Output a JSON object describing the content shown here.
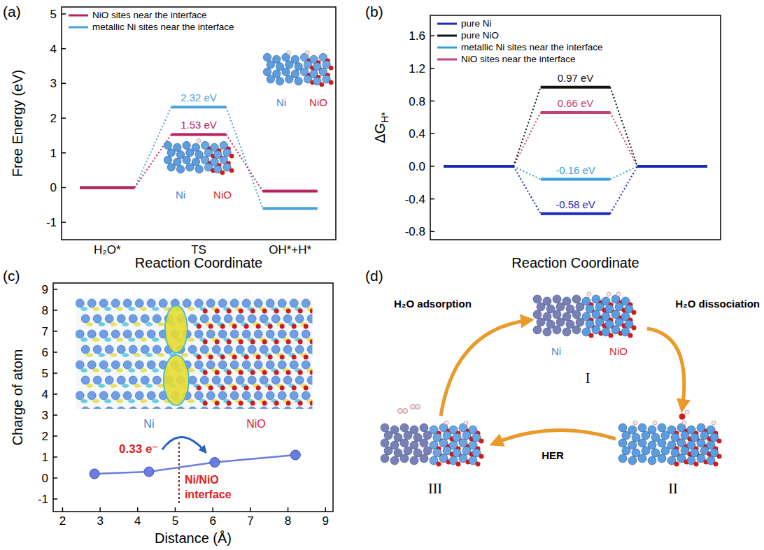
{
  "panels": [
    "(a)",
    "(b)",
    "(c)",
    "(d)"
  ],
  "chart_data": [
    {
      "type": "level",
      "xlabel": "Reaction Coordinate",
      "ylabel": "Free Energy (eV)",
      "categories": [
        "H₂O*",
        "TS",
        "OH*+H*"
      ],
      "ylim": [
        -1.5,
        5.2
      ],
      "yticks": [
        -1,
        0,
        1,
        2,
        3,
        4,
        5
      ],
      "legend": "upper-left",
      "series": [
        {
          "name": "NiO sites near the interface",
          "color": "#b8235f",
          "values": [
            0,
            1.53,
            -0.1
          ],
          "value_labels": [
            null,
            "1.53 eV",
            null
          ]
        },
        {
          "name": "metallic Ni sites near the interface",
          "color": "#4aa2dc",
          "values": [
            0,
            2.32,
            -0.6
          ],
          "value_labels": [
            null,
            "2.32 eV",
            null
          ]
        }
      ],
      "annotations": [
        {
          "text": "Ni",
          "color": "#3f86d6"
        },
        {
          "text": "NiO",
          "color": "#d81e1e"
        },
        {
          "text": "Ni",
          "color": "#3f86d6"
        },
        {
          "text": "NiO",
          "color": "#d81e1e"
        }
      ]
    },
    {
      "type": "level",
      "xlabel": "Reaction Coordinate",
      "ylabel": "ΔG",
      "ylabel_subscript": "H*",
      "categories": [
        null,
        null,
        null
      ],
      "tick_labels": "y",
      "ylim": [
        -0.9,
        1.85
      ],
      "yticks": [
        -0.8,
        -0.4,
        {
          "value": 0,
          "label": "0.0"
        },
        0.4,
        0.8,
        1.2,
        1.6
      ],
      "legend": "upper-left",
      "series": [
        {
          "name": "pure Ni",
          "color": "#1c2bb8",
          "values": [
            0,
            -0.58,
            0
          ],
          "value_labels": [
            null,
            "-0.58 eV",
            null
          ]
        },
        {
          "name": "pure NiO",
          "color": "#111111",
          "values": [
            0,
            0.97,
            0
          ],
          "value_labels": [
            null,
            "0.97 eV",
            null
          ]
        },
        {
          "name": "metallic Ni sites near the interface",
          "color": "#3a9fd8",
          "values": [
            0,
            -0.16,
            0
          ],
          "value_labels": [
            null,
            "-0.16 eV",
            null
          ]
        },
        {
          "name": "NiO sites near the interface",
          "color": "#c2407c",
          "values": [
            0,
            0.66,
            0
          ],
          "value_labels": [
            null,
            "0.66 eV",
            null
          ]
        }
      ]
    },
    {
      "type": "line",
      "marker": "circle",
      "xlabel": "Distance (Å)",
      "ylabel": "Charge of atom",
      "x": [
        2.85,
        4.3,
        6.05,
        8.2
      ],
      "values": [
        0.2,
        0.3,
        0.75,
        1.1
      ],
      "color": "#6a7de0",
      "xlim": [
        1.75,
        9.2
      ],
      "xticks": [
        2,
        3,
        4,
        5,
        6,
        7,
        8,
        9
      ],
      "ylim": [
        -1.6,
        9.3
      ],
      "yticks": [
        -1,
        0,
        1,
        2,
        3,
        4,
        5,
        6,
        7,
        8,
        9
      ],
      "interface_line": {
        "x": 5.1,
        "y": [
          -1.2,
          1.7
        ]
      },
      "annotations": [
        {
          "text": "0.33 e⁻",
          "color": "#e0201b"
        },
        {
          "text": "Ni/NiO interface",
          "color": "#e0201b"
        },
        {
          "text": "Ni",
          "color": "#3a7fd0"
        },
        {
          "text": "NiO",
          "color": "#e0201b"
        }
      ]
    }
  ],
  "diagram": {
    "steps": [
      {
        "label": "H₂O adsorption"
      },
      {
        "label": "H₂O dissociation"
      },
      {
        "label": "HER"
      }
    ],
    "states": [
      "I",
      "II",
      "III"
    ],
    "components": [
      {
        "text": "Ni",
        "color": "#3f86d6"
      },
      {
        "text": "NiO",
        "color": "#d81e1e"
      }
    ]
  }
}
